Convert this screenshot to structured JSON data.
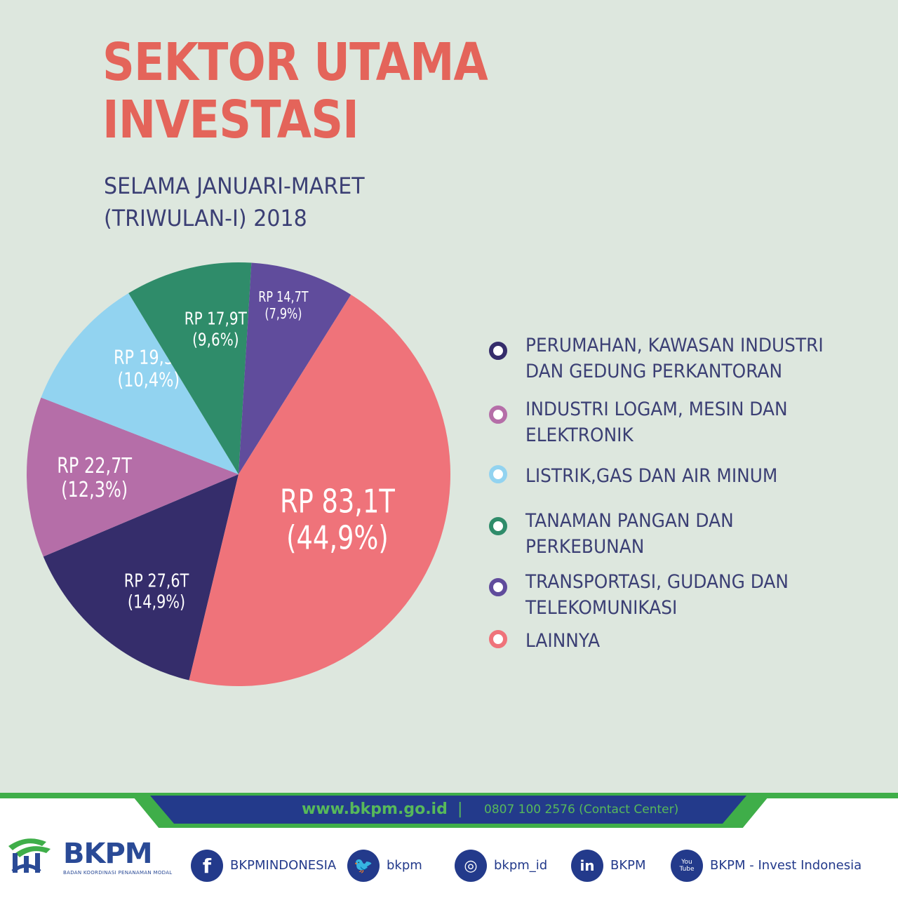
{
  "header": {
    "title_line1": "SEKTOR UTAMA",
    "title_line2": "INVESTASI",
    "subtitle_line1": "SELAMA JANUARI-MARET",
    "subtitle_line2": "(TRIWULAN-I) 2018"
  },
  "chart_data": {
    "type": "pie",
    "title": "SEKTOR UTAMA INVESTASI",
    "legend_position": "right",
    "slices": [
      {
        "name": "PERUMAHAN, KAWASAN INDUSTRI DAN GEDUNG PERKANTORAN",
        "value": 27.6,
        "percent": 14.9,
        "label_value": "RP 27,6T",
        "label_percent": "(14,9%)",
        "color": "#352d6b"
      },
      {
        "name": "INDUSTRI LOGAM, MESIN DAN ELEKTRONIK",
        "value": 22.7,
        "percent": 12.3,
        "label_value": "RP 22,7T",
        "label_percent": "(12,3%)",
        "color": "#b56ea8"
      },
      {
        "name": "LISTRIK,GAS DAN AIR MINUM",
        "value": 19.3,
        "percent": 10.4,
        "label_value": "RP 19,3T",
        "label_percent": "(10,4%)",
        "color": "#92d3f0"
      },
      {
        "name": "TANAMAN PANGAN DAN PERKEBUNAN",
        "value": 17.9,
        "percent": 9.6,
        "label_value": "RP 17,9T",
        "label_percent": "(9,6%)",
        "color": "#2f8c6a"
      },
      {
        "name": "TRANSPORTASI, GUDANG DAN TELEKOMUNIKASI",
        "value": 14.7,
        "percent": 7.9,
        "label_value": "RP 14,7T",
        "label_percent": "(7,9%)",
        "color": "#604c9c"
      },
      {
        "name": "LAINNYA",
        "value": 83.1,
        "percent": 44.9,
        "label_value": "RP 83,1T",
        "label_percent": "(44,9%)",
        "color": "#ef737a"
      }
    ]
  },
  "legend": {
    "items": [
      {
        "line1": "PERUMAHAN, KAWASAN INDUSTRI",
        "line2": "DAN GEDUNG PERKANTORAN",
        "color": "#352d6b"
      },
      {
        "line1": "INDUSTRI LOGAM, MESIN DAN",
        "line2": "ELEKTRONIK",
        "color": "#b56ea8"
      },
      {
        "line1": "LISTRIK,GAS DAN AIR MINUM",
        "line2": "",
        "color": "#92d3f0"
      },
      {
        "line1": "TANAMAN PANGAN DAN",
        "line2": "PERKEBUNAN",
        "color": "#2f8c6a"
      },
      {
        "line1": "TRANSPORTASI, GUDANG DAN",
        "line2": "TELEKOMUNIKASI",
        "color": "#604c9c"
      },
      {
        "line1": "LAINNYA",
        "line2": "",
        "color": "#ef737a"
      }
    ]
  },
  "footer": {
    "website": "www.bkpm.go.id",
    "separator": "|",
    "contact": "0807 100 2576 (Contact Center)",
    "logo_text": "BKPM",
    "logo_subtext": "BADAN KOORDINASI PENANAMAN MODAL",
    "social": [
      {
        "icon": "facebook-icon",
        "glyph": "f",
        "label": "BKPMINDONESIA"
      },
      {
        "icon": "twitter-icon",
        "glyph": "🐦",
        "label": "bkpm"
      },
      {
        "icon": "instagram-icon",
        "glyph": "◎",
        "label": "bkpm_id"
      },
      {
        "icon": "linkedin-icon",
        "glyph": "in",
        "label": "BKPM"
      },
      {
        "icon": "youtube-icon",
        "glyph": "You Tube",
        "label": "BKPM - Invest Indonesia"
      }
    ]
  }
}
